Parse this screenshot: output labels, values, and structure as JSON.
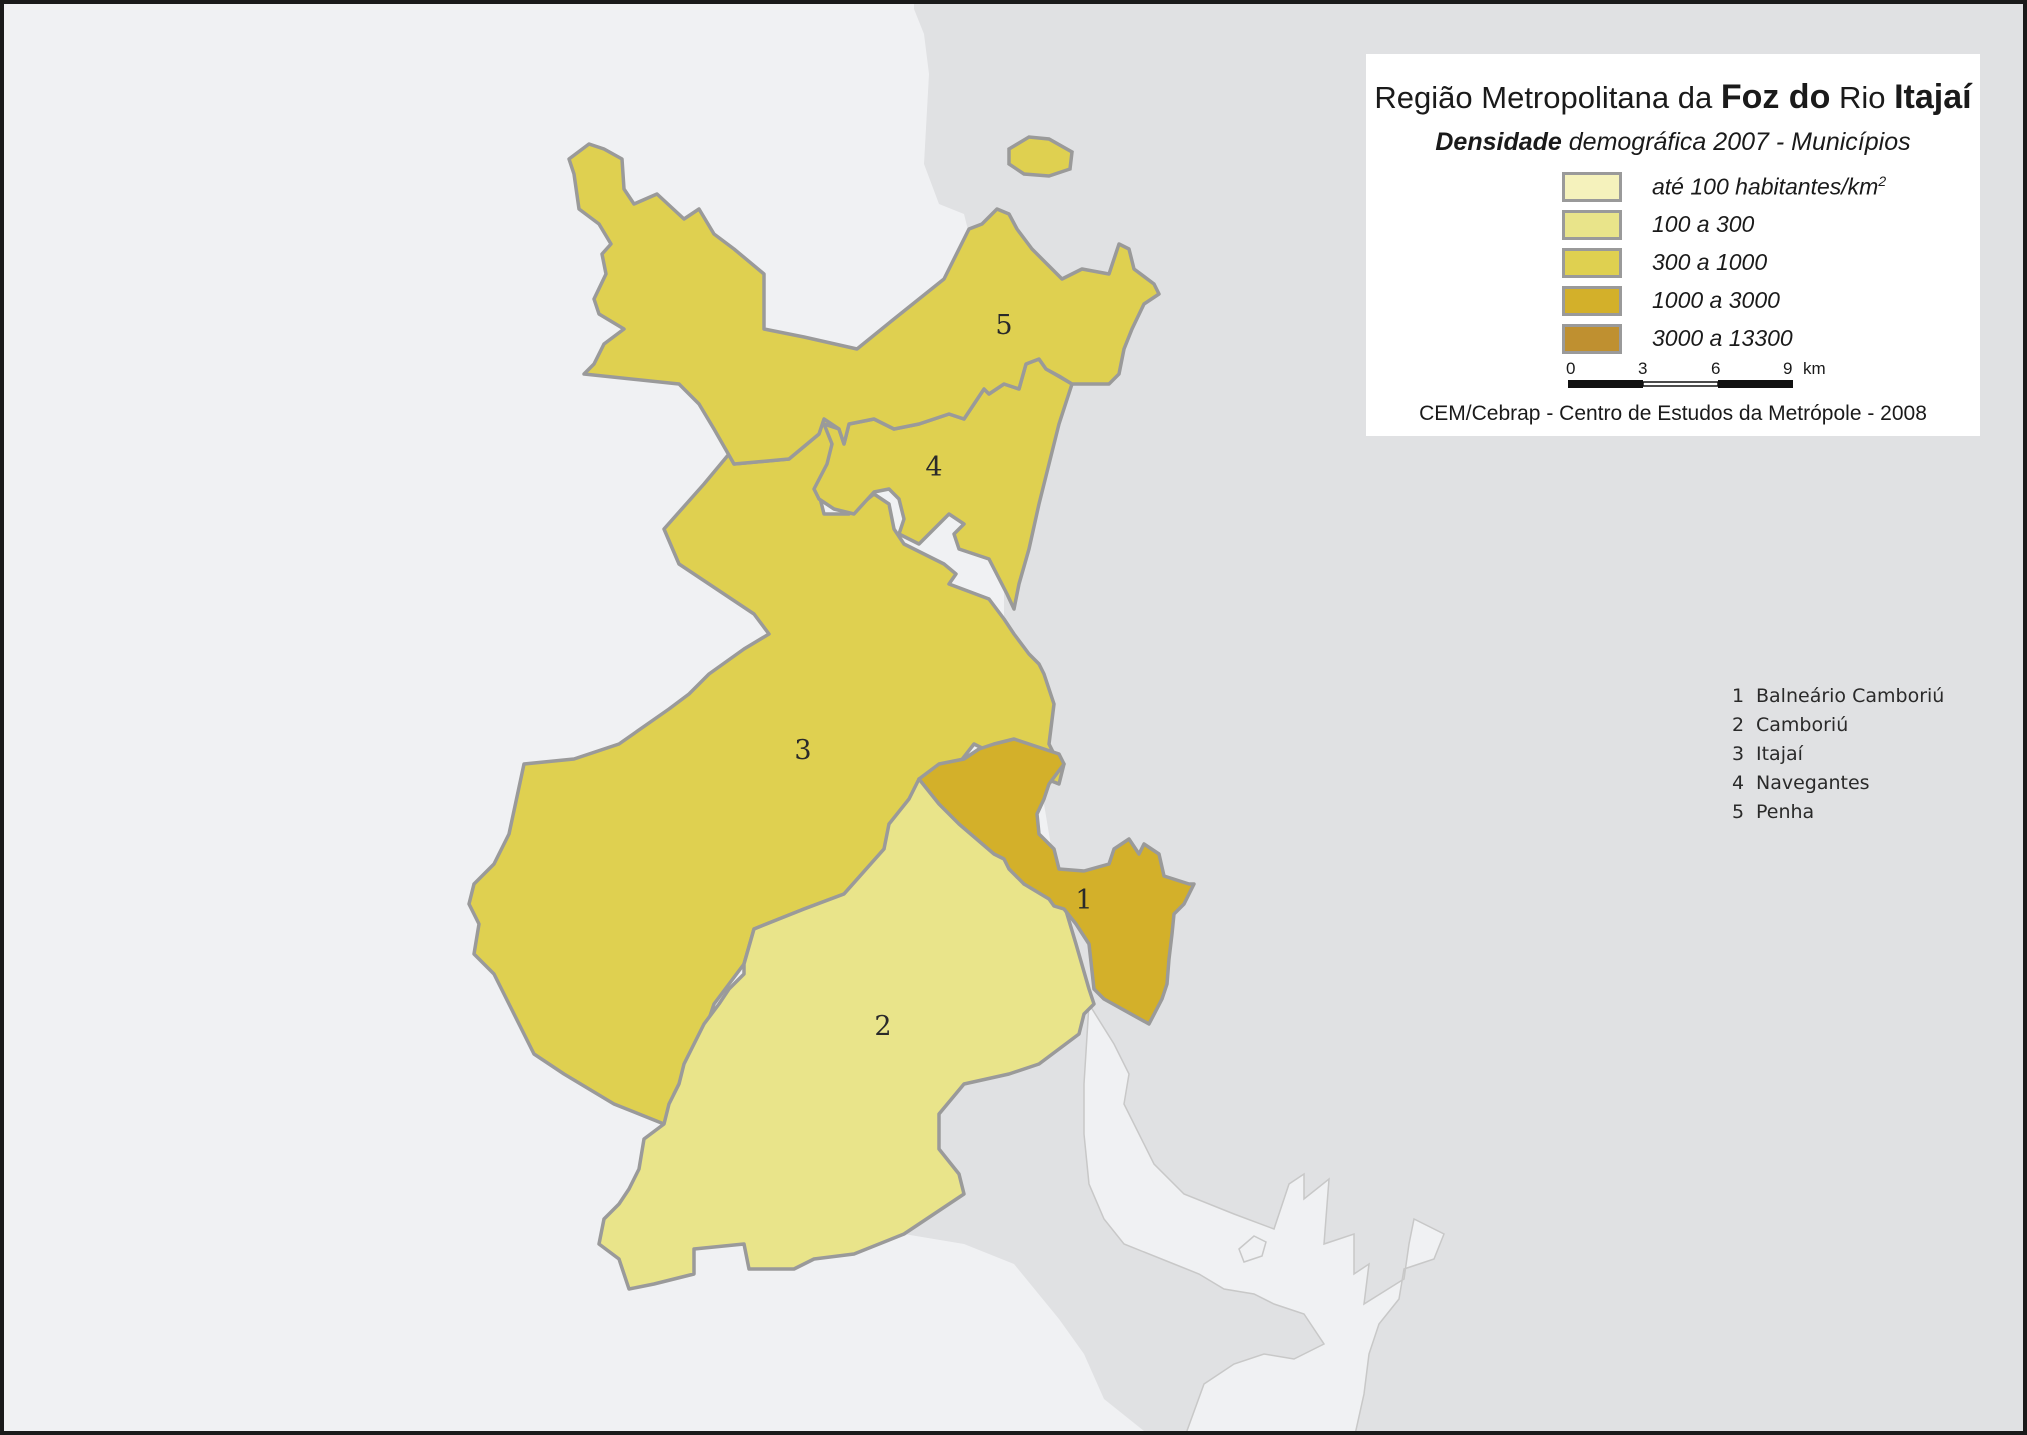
{
  "map": {
    "title_prefix": "Região Metropolitana da",
    "title_bold_1": "Foz do",
    "title_middle": "Rio",
    "title_bold_2": "Itajaí",
    "subtitle_bold": "Densidade",
    "subtitle_rest": "demográfica 2007 - Municípios",
    "legend": [
      {
        "label": "até 100 habitantes/km",
        "superscript": "2",
        "color": "#f5f2bc"
      },
      {
        "label": "100 a 300",
        "color": "#e9e48a"
      },
      {
        "label": "300 a 1000",
        "color": "#dfd050"
      },
      {
        "label": "1000 a 3000",
        "color": "#d3b02a"
      },
      {
        "label": "3000 a 13300",
        "color": "#bf9030"
      }
    ],
    "scale": {
      "ticks": [
        "0",
        "3",
        "6",
        "9"
      ],
      "unit": "km"
    },
    "source": "CEM/Cebrap - Centro de Estudos da Metrópole - 2008",
    "municipalities": [
      {
        "number": "1",
        "name": "Balneário Camboriú",
        "density_class": "1000 a 3000",
        "color": "#d3b02a"
      },
      {
        "number": "2",
        "name": "Camboriú",
        "density_class": "100 a 300",
        "color": "#e9e48a"
      },
      {
        "number": "3",
        "name": "Itajaí",
        "density_class": "300 a 1000",
        "color": "#dfd050"
      },
      {
        "number": "4",
        "name": "Navegantes",
        "density_class": "300 a 1000",
        "color": "#dfd050"
      },
      {
        "number": "5",
        "name": "Penha",
        "density_class": "300 a 1000",
        "color": "#dfd050"
      }
    ],
    "colors": {
      "land": "#f0f1f3",
      "sea": "#e0e1e3",
      "boundary": "#9a9a9a",
      "frame": "#1a1a1a"
    }
  }
}
